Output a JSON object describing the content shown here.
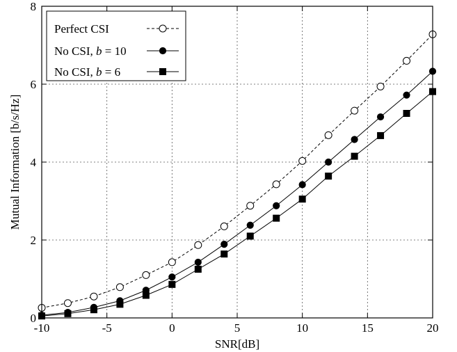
{
  "chart_data": {
    "type": "line",
    "xlabel": "SNR[dB]",
    "ylabel": "Mutual Information [b/s/Hz]",
    "xlim": [
      -10,
      20
    ],
    "ylim": [
      0,
      8
    ],
    "xticks": [
      "-10",
      "-5",
      "0",
      "5",
      "10",
      "15",
      "20"
    ],
    "yticks": [
      "0",
      "2",
      "4",
      "6",
      "8"
    ],
    "grid": true,
    "legend_position": "top-left",
    "x": [
      -10,
      -8,
      -6,
      -4,
      -2,
      0,
      2,
      4,
      6,
      8,
      10,
      12,
      14,
      16,
      18,
      20
    ],
    "series": [
      {
        "name": "Perfect CSI",
        "line": "dashed",
        "marker": "open-circle",
        "values": [
          0.26,
          0.38,
          0.55,
          0.79,
          1.1,
          1.43,
          1.87,
          2.35,
          2.88,
          3.43,
          4.03,
          4.69,
          5.32,
          5.94,
          6.6,
          7.28
        ]
      },
      {
        "name_parts": [
          "No CSI, ",
          "b",
          " = 10"
        ],
        "line": "solid",
        "marker": "filled-circle",
        "values": [
          0.07,
          0.14,
          0.27,
          0.44,
          0.71,
          1.05,
          1.43,
          1.89,
          2.38,
          2.88,
          3.42,
          4.0,
          4.58,
          5.16,
          5.72,
          6.33
        ]
      },
      {
        "name_parts": [
          "No CSI, ",
          "b",
          " = 6"
        ],
        "line": "solid",
        "marker": "filled-square",
        "values": [
          0.05,
          0.11,
          0.21,
          0.35,
          0.58,
          0.86,
          1.25,
          1.64,
          2.1,
          2.56,
          3.05,
          3.64,
          4.15,
          4.68,
          5.25,
          5.81
        ]
      }
    ]
  }
}
